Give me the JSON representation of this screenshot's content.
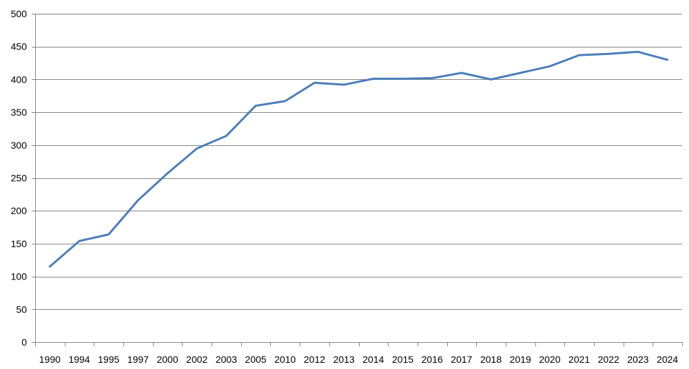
{
  "chart_data": {
    "type": "line",
    "title": "",
    "xlabel": "",
    "ylabel": "",
    "ylim": [
      0,
      500
    ],
    "y_ticks": [
      0,
      50,
      100,
      150,
      200,
      250,
      300,
      350,
      400,
      450,
      500
    ],
    "grid": "horizontal",
    "legend": "none",
    "categories": [
      "1990",
      "1994",
      "1995",
      "1997",
      "2000",
      "2002",
      "2003",
      "2005",
      "2010",
      "2012",
      "2013",
      "2014",
      "2015",
      "2016",
      "2017",
      "2018",
      "2019",
      "2020",
      "2021",
      "2022",
      "2023",
      "2024"
    ],
    "series": [
      {
        "color": "#4a7ebb",
        "values": [
          115,
          154,
          164,
          216,
          257,
          295,
          314,
          360,
          367,
          395,
          392,
          401,
          401,
          402,
          410,
          400,
          410,
          420,
          437,
          439,
          442,
          430
        ]
      }
    ]
  }
}
